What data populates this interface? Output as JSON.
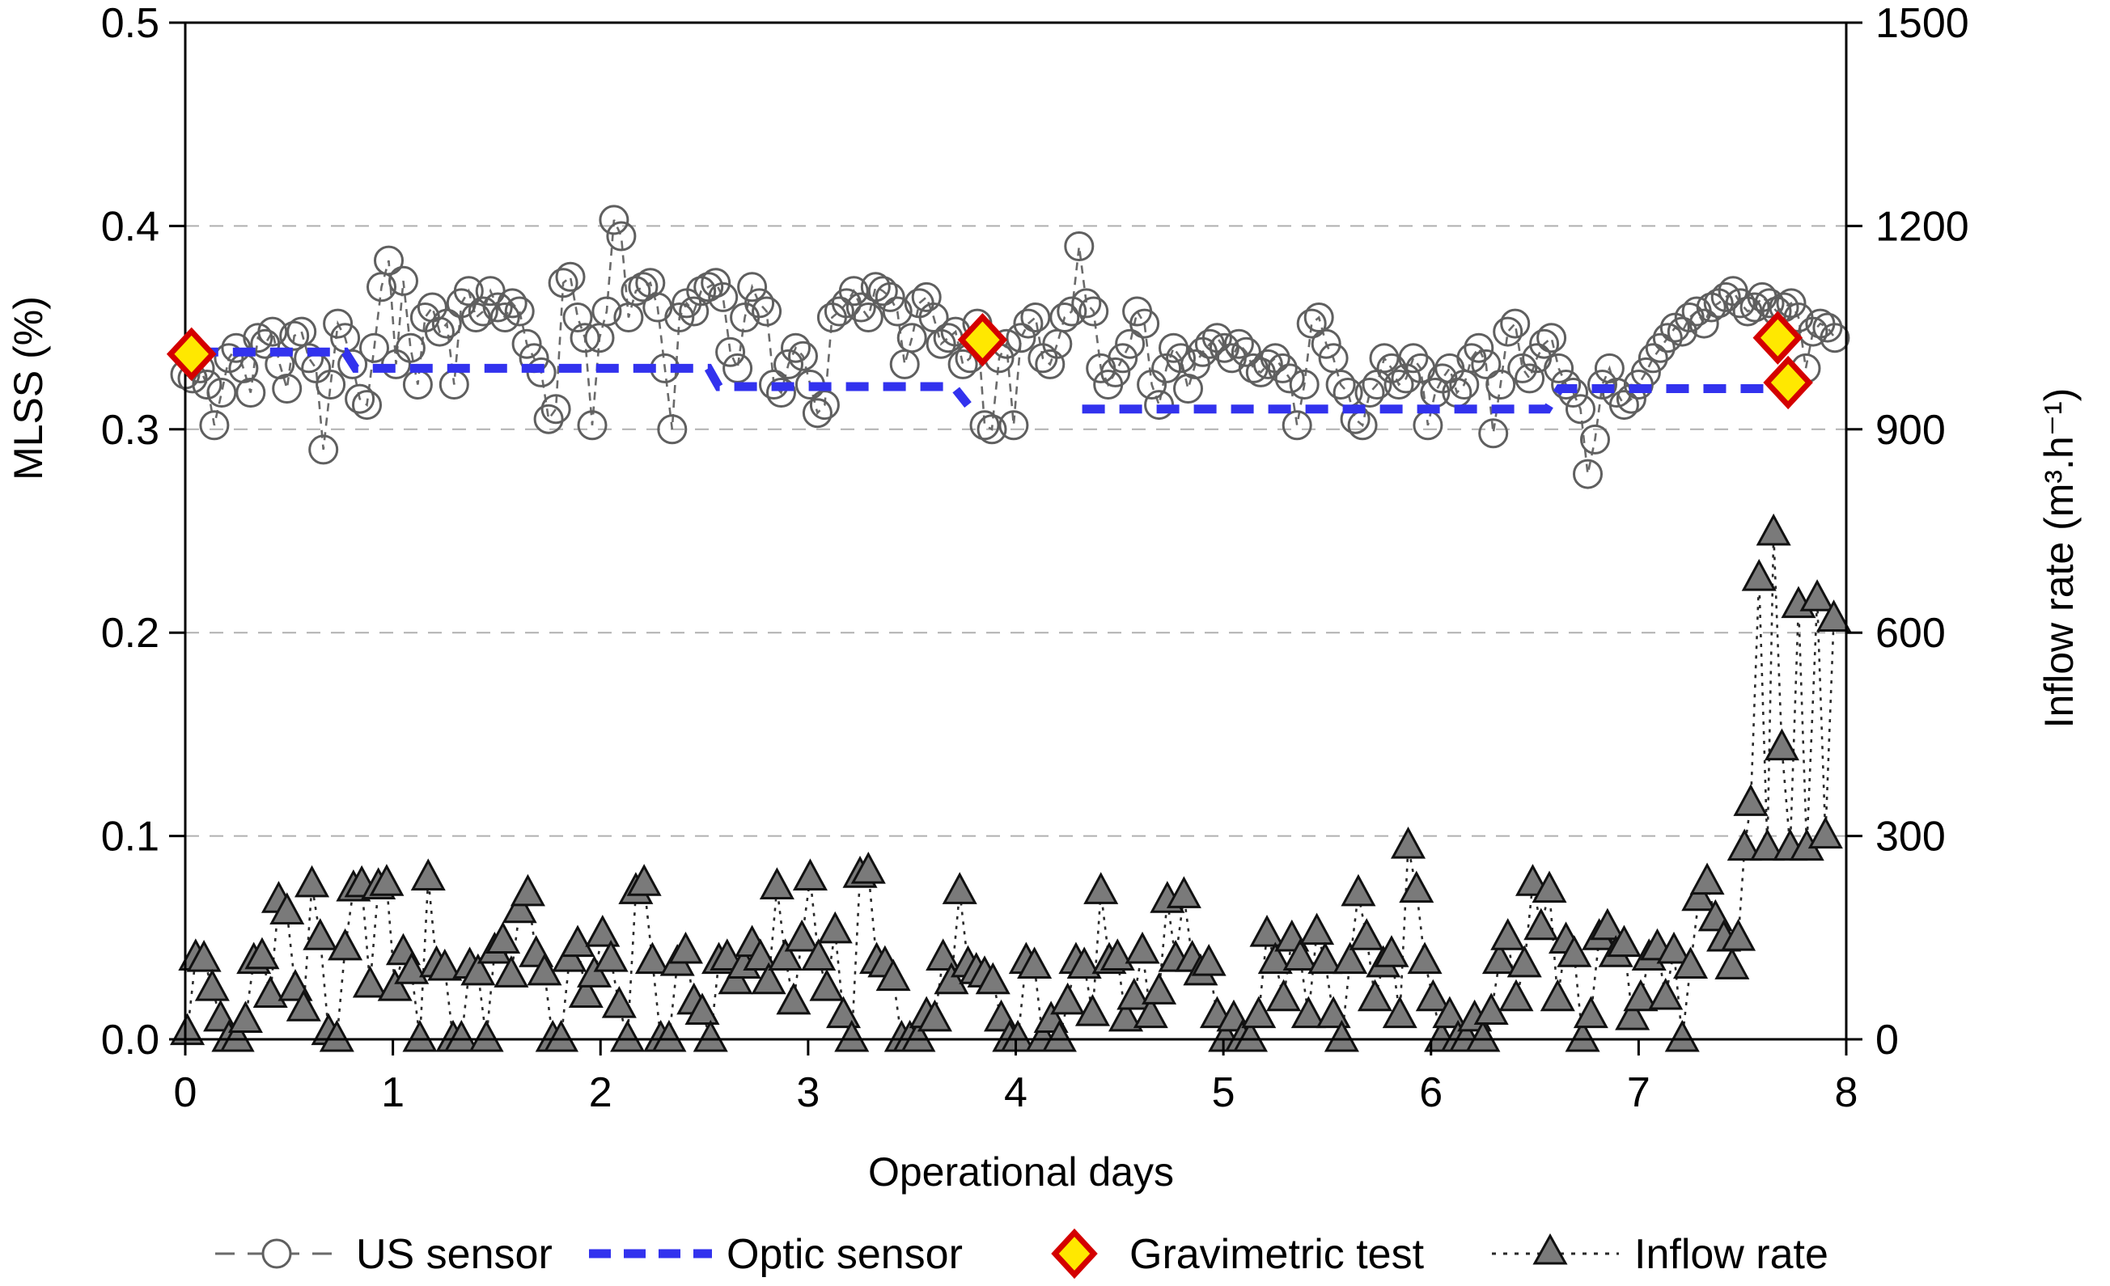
{
  "colors": {
    "frame": "#000000",
    "gridline": "#b0b0b0",
    "us_marker_stroke": "#5f5f5f",
    "us_connector": "#6a6a6a",
    "optic_line": "#3232ee",
    "gravimetric_fill": "#ffe800",
    "gravimetric_stroke": "#d40000",
    "inflow_fill": "#7a7a7a",
    "inflow_stroke": "#111111",
    "inflow_connector": "#2a2a2a",
    "background": "#ffffff"
  },
  "chart_data": {
    "type": "scatter",
    "title": "",
    "xlabel": "Operational days",
    "ylabel_left": "MLSS (%)",
    "ylabel_right": "Inflow rate (m³.h⁻¹)",
    "xlim": [
      0,
      8
    ],
    "ylim_left": [
      0.0,
      0.5
    ],
    "ylim_right": [
      0,
      1500
    ],
    "x_ticks": [
      "0",
      "1",
      "2",
      "3",
      "4",
      "5",
      "6",
      "7",
      "8"
    ],
    "y_left_ticks": [
      {
        "value": 0.0,
        "label": "0.0"
      },
      {
        "value": 0.1,
        "label": "0.1"
      },
      {
        "value": 0.2,
        "label": "0.2"
      },
      {
        "value": 0.3,
        "label": "0.3"
      },
      {
        "value": 0.4,
        "label": "0.4"
      },
      {
        "value": 0.5,
        "label": "0.5"
      }
    ],
    "y_right_ticks": [
      {
        "value": 0,
        "label": "0"
      },
      {
        "value": 300,
        "label": "300"
      },
      {
        "value": 600,
        "label": "600"
      },
      {
        "value": 900,
        "label": "900"
      },
      {
        "value": 1200,
        "label": "1200"
      },
      {
        "value": 1500,
        "label": "1500"
      }
    ],
    "grid_y_left": [
      0.1,
      0.2,
      0.3,
      0.4
    ],
    "legend_position": "bottom",
    "series": [
      {
        "name": "US sensor",
        "axis": "left",
        "marker": "circle",
        "line_style": "dashed",
        "x_start": 0.0,
        "x_step": 0.035,
        "y": [
          0.327,
          0.325,
          0.33,
          0.322,
          0.302,
          0.318,
          0.335,
          0.34,
          0.33,
          0.318,
          0.345,
          0.342,
          0.348,
          0.332,
          0.32,
          0.346,
          0.348,
          0.335,
          0.33,
          0.29,
          0.322,
          0.352,
          0.345,
          0.332,
          0.315,
          0.312,
          0.34,
          0.37,
          0.383,
          0.332,
          0.373,
          0.34,
          0.322,
          0.355,
          0.36,
          0.348,
          0.352,
          0.322,
          0.362,
          0.368,
          0.355,
          0.358,
          0.368,
          0.36,
          0.355,
          0.362,
          0.358,
          0.342,
          0.335,
          0.328,
          0.305,
          0.31,
          0.372,
          0.375,
          0.355,
          0.345,
          0.302,
          0.345,
          0.358,
          0.403,
          0.395,
          0.355,
          0.368,
          0.37,
          0.372,
          0.36,
          0.33,
          0.3,
          0.355,
          0.362,
          0.358,
          0.368,
          0.37,
          0.372,
          0.365,
          0.338,
          0.33,
          0.355,
          0.37,
          0.362,
          0.358,
          0.322,
          0.318,
          0.332,
          0.34,
          0.336,
          0.322,
          0.308,
          0.312,
          0.355,
          0.358,
          0.362,
          0.368,
          0.36,
          0.355,
          0.37,
          0.368,
          0.365,
          0.358,
          0.332,
          0.345,
          0.362,
          0.365,
          0.355,
          0.342,
          0.345,
          0.348,
          0.332,
          0.335,
          0.352,
          0.302,
          0.3,
          0.335,
          0.342,
          0.302,
          0.345,
          0.352,
          0.355,
          0.335,
          0.332,
          0.342,
          0.355,
          0.358,
          0.39,
          0.362,
          0.358,
          0.33,
          0.322,
          0.328,
          0.335,
          0.342,
          0.358,
          0.352,
          0.322,
          0.312,
          0.33,
          0.34,
          0.335,
          0.32,
          0.332,
          0.338,
          0.342,
          0.345,
          0.34,
          0.335,
          0.342,
          0.338,
          0.33,
          0.328,
          0.332,
          0.335,
          0.33,
          0.325,
          0.302,
          0.322,
          0.352,
          0.355,
          0.342,
          0.335,
          0.322,
          0.318,
          0.305,
          0.302,
          0.318,
          0.322,
          0.335,
          0.33,
          0.322,
          0.325,
          0.335,
          0.33,
          0.302,
          0.318,
          0.325,
          0.33,
          0.318,
          0.322,
          0.335,
          0.34,
          0.332,
          0.298,
          0.322,
          0.348,
          0.352,
          0.33,
          0.325,
          0.335,
          0.342,
          0.345,
          0.33,
          0.322,
          0.318,
          0.31,
          0.278,
          0.295,
          0.322,
          0.33,
          0.318,
          0.312,
          0.315,
          0.322,
          0.328,
          0.335,
          0.34,
          0.345,
          0.35,
          0.348,
          0.355,
          0.358,
          0.352,
          0.36,
          0.362,
          0.365,
          0.368,
          0.362,
          0.358,
          0.36,
          0.365,
          0.362,
          0.358,
          0.36,
          0.362,
          0.355,
          0.33,
          0.348,
          0.352,
          0.35,
          0.345
        ]
      },
      {
        "name": "Optic sensor",
        "axis": "left",
        "marker": "none",
        "line_style": "bold-dashed",
        "segments": [
          [
            [
              0.05,
              0.338
            ],
            [
              0.77,
              0.338
            ],
            [
              0.82,
              0.33
            ],
            [
              2.52,
              0.33
            ],
            [
              2.57,
              0.321
            ],
            [
              3.7,
              0.321
            ],
            [
              3.77,
              0.312
            ]
          ],
          [
            [
              4.32,
              0.31
            ],
            [
              6.56,
              0.31
            ],
            [
              6.62,
              0.32
            ],
            [
              7.63,
              0.32
            ]
          ]
        ]
      },
      {
        "name": "Gravimetric test",
        "axis": "left",
        "marker": "diamond",
        "line_style": "none",
        "points": [
          [
            0.03,
            0.337
          ],
          [
            3.84,
            0.344
          ],
          [
            7.67,
            0.345
          ],
          [
            7.72,
            0.323
          ]
        ]
      },
      {
        "name": "Inflow rate",
        "axis": "right",
        "marker": "triangle",
        "line_style": "dotted",
        "x_start": 0.01,
        "x_step": 0.04,
        "y": [
          10,
          120,
          118,
          75,
          30,
          0,
          0,
          28,
          115,
          122,
          65,
          205,
          188,
          75,
          45,
          228,
          150,
          10,
          0,
          135,
          222,
          228,
          80,
          225,
          230,
          75,
          128,
          100,
          0,
          238,
          110,
          105,
          0,
          0,
          108,
          98,
          0,
          130,
          145,
          95,
          190,
          215,
          125,
          98,
          0,
          0,
          118,
          140,
          65,
          95,
          155,
          118,
          50,
          0,
          218,
          230,
          115,
          0,
          0,
          112,
          130,
          55,
          40,
          0,
          115,
          120,
          85,
          108,
          140,
          120,
          85,
          225,
          120,
          55,
          148,
          238,
          120,
          75,
          160,
          35,
          0,
          242,
          248,
          115,
          110,
          90,
          0,
          0,
          0,
          35,
          30,
          120,
          85,
          218,
          110,
          100,
          95,
          85,
          30,
          0,
          0,
          115,
          108,
          0,
          28,
          0,
          55,
          115,
          108,
          38,
          218,
          115,
          120,
          30,
          62,
          130,
          35,
          70,
          205,
          118,
          212,
          118,
          98,
          112,
          35,
          0,
          30,
          0,
          0,
          35,
          155,
          115,
          60,
          148,
          120,
          35,
          158,
          115,
          35,
          0,
          115,
          215,
          150,
          60,
          110,
          125,
          35,
          285,
          220,
          115,
          60,
          0,
          35,
          0,
          0,
          30,
          0,
          40,
          115,
          150,
          60,
          110,
          230,
          165,
          220,
          60,
          145,
          125,
          0,
          35,
          150,
          165,
          125,
          140,
          32
        ],
        "extra_points": [
          [
            7.01,
            60
          ],
          [
            7.05,
            120
          ],
          [
            7.09,
            135
          ],
          [
            7.13,
            62
          ],
          [
            7.17,
            130
          ],
          [
            7.21,
            0
          ],
          [
            7.25,
            108
          ],
          [
            7.29,
            208
          ],
          [
            7.33,
            232
          ],
          [
            7.37,
            178
          ],
          [
            7.41,
            148
          ],
          [
            7.45,
            107
          ],
          [
            7.48,
            149
          ],
          [
            7.51,
            282
          ],
          [
            7.54,
            348
          ],
          [
            7.58,
            680
          ],
          [
            7.62,
            282
          ],
          [
            7.65,
            747
          ],
          [
            7.69,
            430
          ],
          [
            7.73,
            282
          ],
          [
            7.77,
            640
          ],
          [
            7.81,
            282
          ],
          [
            7.86,
            650
          ],
          [
            7.9,
            300
          ],
          [
            7.94,
            620
          ]
        ]
      }
    ]
  }
}
